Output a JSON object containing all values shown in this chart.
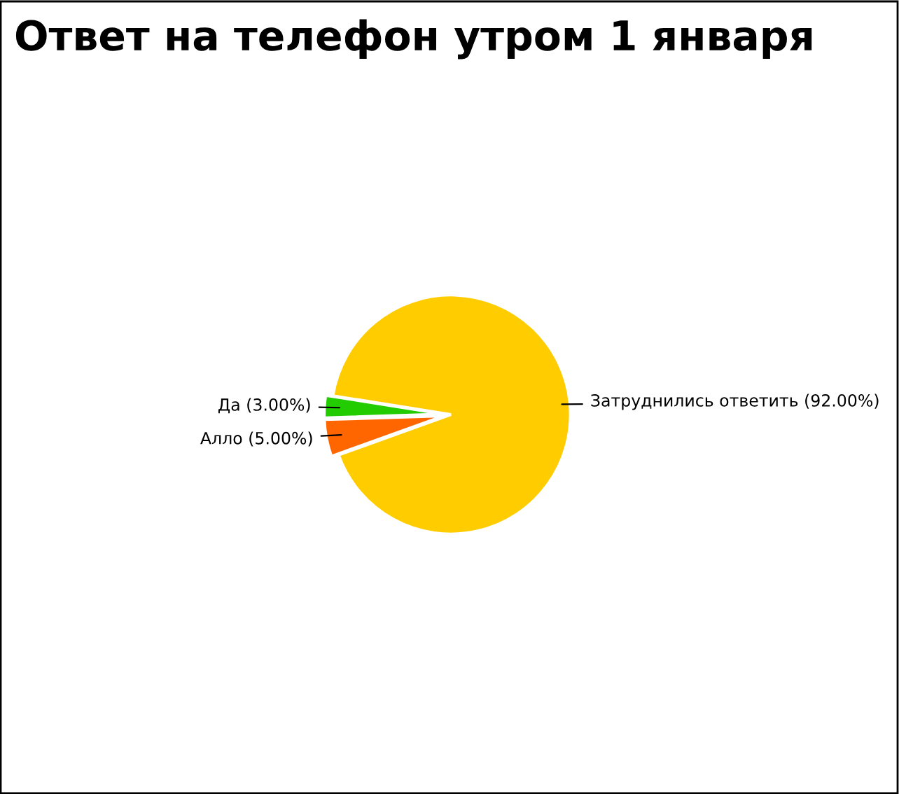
{
  "chart_data": {
    "type": "pie",
    "title": "Ответ на телефон утром 1 января",
    "categories": [
      "Да",
      "Алло",
      "Затруднились ответить"
    ],
    "values": [
      3,
      5,
      92
    ],
    "colors": [
      "#22cc00",
      "#ff6600",
      "#ffcc00"
    ],
    "value_labels": [
      "(3.00%)",
      "(5.00%)",
      "(92.00%)"
    ],
    "legend": false
  }
}
